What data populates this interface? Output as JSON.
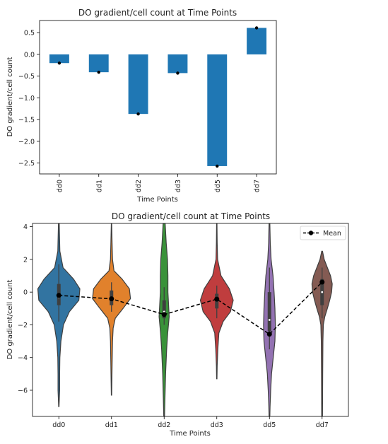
{
  "chart_data": [
    {
      "type": "bar",
      "title": "DO gradient/cell count at Time Points",
      "xlabel": "Time Points",
      "ylabel": "DO gradient/cell count",
      "categories": [
        "dd0",
        "dd1",
        "dd2",
        "dd3",
        "dd5",
        "dd7"
      ],
      "values": [
        -0.2,
        -0.41,
        -1.37,
        -0.43,
        -2.57,
        0.61
      ],
      "mean_markers": [
        -0.2,
        -0.41,
        -1.37,
        -0.43,
        -2.57,
        0.61
      ],
      "ylim": [
        -2.75,
        0.78
      ],
      "yticks": [
        0.5,
        0.0,
        -0.5,
        -1.0,
        -1.5,
        -2.0,
        -2.5
      ],
      "ytick_labels": [
        "0.5",
        "0.0",
        "−0.5",
        "−1.0",
        "−1.5",
        "−2.0",
        "−2.5"
      ],
      "bar_color": "#1f77b4",
      "grid": false
    },
    {
      "type": "violin",
      "title": "DO gradient/cell count at Time Points",
      "xlabel": "Time Points",
      "ylabel": "DO gradient/cell count",
      "categories": [
        "dd0",
        "dd1",
        "dd2",
        "dd3",
        "dd5",
        "dd7"
      ],
      "ylim": [
        -7.6,
        4.2
      ],
      "yticks": [
        4,
        2,
        0,
        -2,
        -4,
        -6
      ],
      "ytick_labels": [
        "4",
        "2",
        "0",
        "−2",
        "−4",
        "−6"
      ],
      "colors": [
        "#3274a1",
        "#e1812c",
        "#3a923a",
        "#c03d3e",
        "#9372b2",
        "#845b53"
      ],
      "violins": [
        {
          "category": "dd0",
          "median": -0.3,
          "q1": -0.8,
          "q3": 0.5,
          "whisker_low": -1.8,
          "whisker_high": 1.7,
          "profile": [
            [
              4.2,
              0.02
            ],
            [
              2.5,
              0.05
            ],
            [
              1.5,
              0.2
            ],
            [
              0.8,
              0.7
            ],
            [
              0.2,
              1.0
            ],
            [
              -0.5,
              0.95
            ],
            [
              -1.2,
              0.5
            ],
            [
              -2.0,
              0.22
            ],
            [
              -3.0,
              0.1
            ],
            [
              -4.0,
              0.05
            ],
            [
              -5.0,
              0.04
            ],
            [
              -6.0,
              0.04
            ],
            [
              -7.0,
              0.01
            ]
          ]
        },
        {
          "category": "dd1",
          "median": -0.4,
          "q1": -0.8,
          "q3": 0.1,
          "whisker_low": -1.2,
          "whisker_high": 0.6,
          "profile": [
            [
              4.2,
              0.01
            ],
            [
              3.0,
              0.03
            ],
            [
              2.0,
              0.05
            ],
            [
              1.3,
              0.12
            ],
            [
              0.8,
              0.5
            ],
            [
              0.2,
              0.85
            ],
            [
              -0.4,
              0.9
            ],
            [
              -1.0,
              0.55
            ],
            [
              -1.6,
              0.18
            ],
            [
              -2.2,
              0.08
            ],
            [
              -3.0,
              0.05
            ],
            [
              -4.5,
              0.03
            ],
            [
              -6.3,
              0.01
            ]
          ]
        },
        {
          "category": "dd2",
          "median": -1.2,
          "q1": -1.6,
          "q3": -0.5,
          "whisker_low": -2.0,
          "whisker_high": 0.3,
          "profile": [
            [
              4.2,
              0.05
            ],
            [
              3.0,
              0.1
            ],
            [
              2.0,
              0.16
            ],
            [
              1.0,
              0.18
            ],
            [
              0.0,
              0.18
            ],
            [
              -1.0,
              0.22
            ],
            [
              -1.5,
              0.24
            ],
            [
              -2.5,
              0.17
            ],
            [
              -3.5,
              0.12
            ],
            [
              -5.0,
              0.07
            ],
            [
              -6.5,
              0.04
            ],
            [
              -7.6,
              0.02
            ]
          ]
        },
        {
          "category": "dd3",
          "median": -0.5,
          "q1": -1.0,
          "q3": -0.1,
          "whisker_low": -1.6,
          "whisker_high": 0.4,
          "profile": [
            [
              4.2,
              0.01
            ],
            [
              3.0,
              0.02
            ],
            [
              2.0,
              0.04
            ],
            [
              1.0,
              0.2
            ],
            [
              0.2,
              0.6
            ],
            [
              -0.5,
              0.78
            ],
            [
              -1.2,
              0.65
            ],
            [
              -1.8,
              0.3
            ],
            [
              -2.5,
              0.1
            ],
            [
              -3.5,
              0.05
            ],
            [
              -4.5,
              0.02
            ],
            [
              -5.3,
              0.01
            ]
          ]
        },
        {
          "category": "dd5",
          "median": -1.7,
          "q1": -2.4,
          "q3": 0.0,
          "whisker_low": -3.5,
          "whisker_high": 1.5,
          "profile": [
            [
              4.2,
              0.02
            ],
            [
              3.0,
              0.04
            ],
            [
              2.0,
              0.08
            ],
            [
              1.0,
              0.17
            ],
            [
              0.0,
              0.22
            ],
            [
              -1.0,
              0.26
            ],
            [
              -2.0,
              0.28
            ],
            [
              -3.0,
              0.26
            ],
            [
              -4.0,
              0.18
            ],
            [
              -5.0,
              0.1
            ],
            [
              -6.0,
              0.06
            ],
            [
              -7.0,
              0.03
            ],
            [
              -7.6,
              0.02
            ]
          ]
        },
        {
          "category": "dd7",
          "median": 0.0,
          "q1": -0.8,
          "q3": 0.8,
          "whisker_low": -1.6,
          "whisker_high": 1.5,
          "profile": [
            [
              2.5,
              0.02
            ],
            [
              2.0,
              0.1
            ],
            [
              1.5,
              0.25
            ],
            [
              1.0,
              0.4
            ],
            [
              0.5,
              0.48
            ],
            [
              0.0,
              0.45
            ],
            [
              -0.5,
              0.36
            ],
            [
              -1.0,
              0.25
            ],
            [
              -1.5,
              0.13
            ],
            [
              -2.0,
              0.06
            ],
            [
              -3.0,
              0.04
            ],
            [
              -5.0,
              0.03
            ],
            [
              -7.6,
              0.02
            ]
          ]
        }
      ],
      "mean_series": {
        "name": "Mean",
        "values": [
          -0.2,
          -0.41,
          -1.37,
          -0.43,
          -2.57,
          0.61
        ],
        "color": "#000000"
      },
      "legend": {
        "position": "top-right",
        "entries": [
          "Mean"
        ]
      },
      "grid": false
    }
  ]
}
